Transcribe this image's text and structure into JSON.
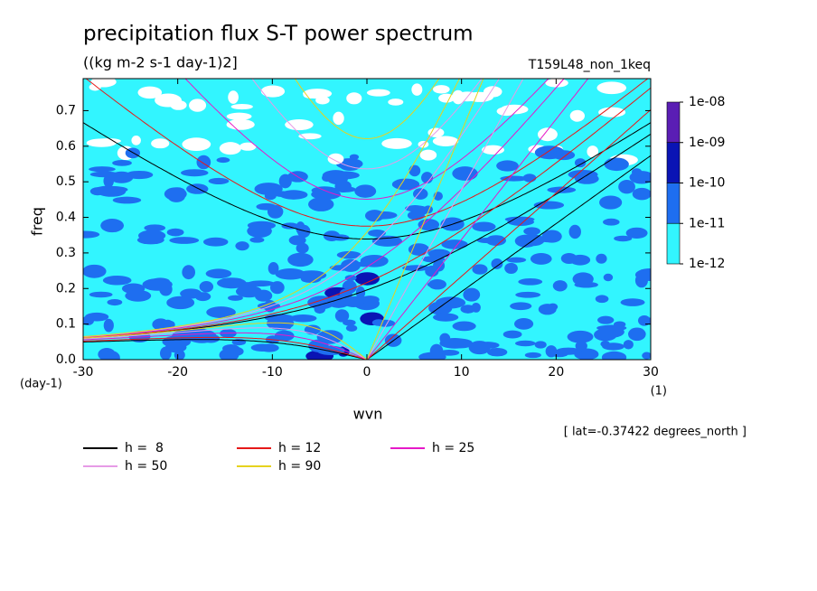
{
  "chart_data": {
    "type": "spectrum",
    "title": "precipitation flux S-T power spectrum",
    "subtitle": "((kg m-2 s-1 day-1)2]",
    "dataset": "T159L48_non_1keq",
    "x_label": "wvn",
    "y_label": "freq",
    "x_unit": "(1)",
    "y_unit": "(day-1)",
    "note": "[ lat=-0.37422 degrees_north ]",
    "xlim": [
      -30,
      30
    ],
    "xticks": [
      -30,
      -20,
      -10,
      0,
      10,
      20,
      30
    ],
    "ylim": [
      0,
      0.79
    ],
    "yticks": [
      {
        "value": 0,
        "label": "0.0"
      },
      0.1,
      0.2,
      0.3,
      0.4,
      0.5,
      0.6,
      0.7
    ],
    "levels": [
      {
        "value": 1e-08,
        "label": "1e-08"
      },
      {
        "value": 1e-09,
        "label": "1e-09"
      },
      {
        "value": 1e-10,
        "label": "1e-10"
      },
      {
        "value": 1e-11,
        "label": "1e-11"
      },
      {
        "value": 1e-12,
        "label": "1e-12"
      }
    ],
    "level_colors": [
      "#5a1eb4",
      "#0a14b4",
      "#1e6ef0",
      "#32f5ff"
    ],
    "series": [
      {
        "name": "h =  8",
        "h": 8,
        "color": "#000000"
      },
      {
        "name": "h = 12",
        "h": 12,
        "color": "#e61919"
      },
      {
        "name": "h = 25",
        "h": 25,
        "color": "#e619c8"
      },
      {
        "name": "h = 50",
        "h": 50,
        "color": "#e69be6"
      },
      {
        "name": "h = 90",
        "h": 90,
        "color": "#e6d21e"
      }
    ]
  }
}
